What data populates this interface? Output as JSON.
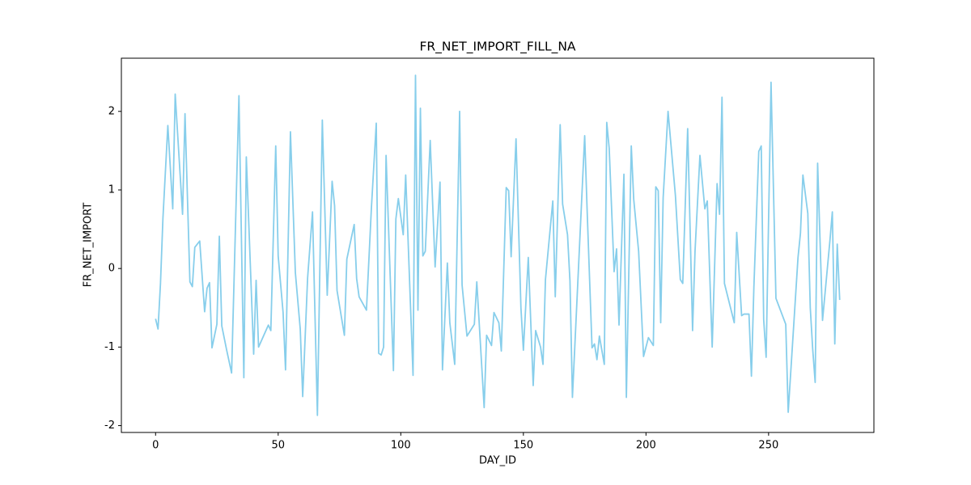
{
  "chart_data": {
    "type": "line",
    "title": "FR_NET_IMPORT_FILL_NA",
    "x_label": "DAY_ID",
    "y_label": "FR_NET_IMPORT",
    "x": [
      0,
      1,
      2,
      3,
      5,
      7,
      8,
      11,
      12,
      14,
      15,
      16,
      18,
      20,
      21,
      22,
      23,
      25,
      26,
      27,
      29,
      31,
      34,
      36,
      37,
      40,
      41,
      42,
      46,
      47,
      49,
      50,
      52,
      53,
      55,
      57,
      59,
      60,
      62,
      64,
      66,
      68,
      70,
      72,
      73,
      74,
      77,
      78,
      81,
      82,
      83,
      86,
      88,
      90,
      91,
      92,
      93,
      94,
      97,
      98,
      99,
      101,
      102,
      105,
      106,
      107,
      108,
      109,
      110,
      112,
      114,
      116,
      117,
      119,
      120,
      122,
      124,
      125,
      127,
      130,
      131,
      134,
      135,
      137,
      138,
      140,
      141,
      143,
      144,
      145,
      147,
      149,
      150,
      152,
      154,
      155,
      157,
      158,
      159,
      162,
      163,
      165,
      166,
      168,
      169,
      170,
      175,
      176,
      178,
      179,
      180,
      181,
      183,
      184,
      185,
      187,
      188,
      189,
      191,
      192,
      194,
      195,
      197,
      199,
      201,
      203,
      204,
      205,
      206,
      207,
      209,
      212,
      214,
      215,
      217,
      219,
      220,
      222,
      224,
      225,
      227,
      229,
      230,
      231,
      232,
      236,
      237,
      239,
      240,
      242,
      243,
      244,
      246,
      247,
      248,
      249,
      251,
      253,
      257,
      258,
      262,
      263,
      264,
      266,
      267,
      268,
      269,
      270,
      272,
      275,
      276,
      277,
      278,
      279
    ],
    "series": [
      {
        "name": "FR_NET_IMPORT_FILL_NA",
        "color": "#87ceeb",
        "values": [
          -0.64,
          -0.77,
          -0.19,
          0.64,
          1.82,
          0.76,
          2.22,
          0.69,
          1.97,
          -0.17,
          -0.23,
          0.27,
          0.35,
          -0.55,
          -0.25,
          -0.18,
          -1.01,
          -0.71,
          0.41,
          -0.73,
          -1.04,
          -1.33,
          2.2,
          -1.39,
          1.42,
          -1.09,
          -0.15,
          -1.0,
          -0.72,
          -0.79,
          1.56,
          0.16,
          -0.56,
          -1.29,
          1.74,
          -0.05,
          -0.77,
          -1.63,
          -0.12,
          0.72,
          -1.87,
          1.89,
          -0.34,
          1.11,
          0.8,
          -0.28,
          -0.85,
          0.12,
          0.56,
          -0.13,
          -0.36,
          -0.53,
          0.76,
          1.85,
          -1.08,
          -1.1,
          -1.0,
          1.44,
          -1.3,
          0.63,
          0.89,
          0.43,
          1.19,
          -1.36,
          2.46,
          -0.53,
          2.04,
          0.16,
          0.22,
          1.63,
          0.02,
          1.1,
          -1.29,
          0.07,
          -0.69,
          -1.22,
          2.0,
          -0.21,
          -0.86,
          -0.71,
          -0.17,
          -1.77,
          -0.85,
          -0.98,
          -0.56,
          -0.69,
          -1.05,
          1.03,
          0.99,
          0.15,
          1.65,
          -0.5,
          -1.04,
          0.14,
          -1.49,
          -0.79,
          -1.0,
          -1.22,
          -0.14,
          0.86,
          -0.36,
          1.83,
          0.82,
          0.43,
          -0.16,
          -1.64,
          1.69,
          0.74,
          -1.01,
          -0.96,
          -1.16,
          -0.86,
          -1.22,
          1.86,
          1.53,
          -0.04,
          0.25,
          -0.72,
          1.2,
          -1.64,
          1.56,
          0.88,
          0.22,
          -1.12,
          -0.88,
          -0.98,
          1.04,
          0.99,
          -0.69,
          0.9,
          2.0,
          0.93,
          -0.14,
          -0.19,
          1.78,
          -0.79,
          0.22,
          1.44,
          0.76,
          0.86,
          -1.0,
          1.08,
          0.69,
          2.18,
          -0.19,
          -0.69,
          0.46,
          -0.6,
          -0.58,
          -0.58,
          -1.37,
          -0.24,
          1.49,
          1.56,
          -0.65,
          -1.13,
          2.37,
          -0.38,
          -0.71,
          -1.83,
          0.14,
          0.45,
          1.19,
          0.7,
          -0.5,
          -1.03,
          -1.45,
          1.34,
          -0.66,
          0.35,
          0.72,
          -0.96,
          0.31,
          -0.4
        ]
      }
    ],
    "xlim": [
      -13.95,
      292.95
    ],
    "xticks": [
      0,
      50,
      100,
      150,
      200,
      250
    ],
    "ylim": [
      -2.087,
      2.677
    ],
    "yticks": [
      -2,
      -1,
      0,
      1,
      2
    ],
    "grid": false
  }
}
